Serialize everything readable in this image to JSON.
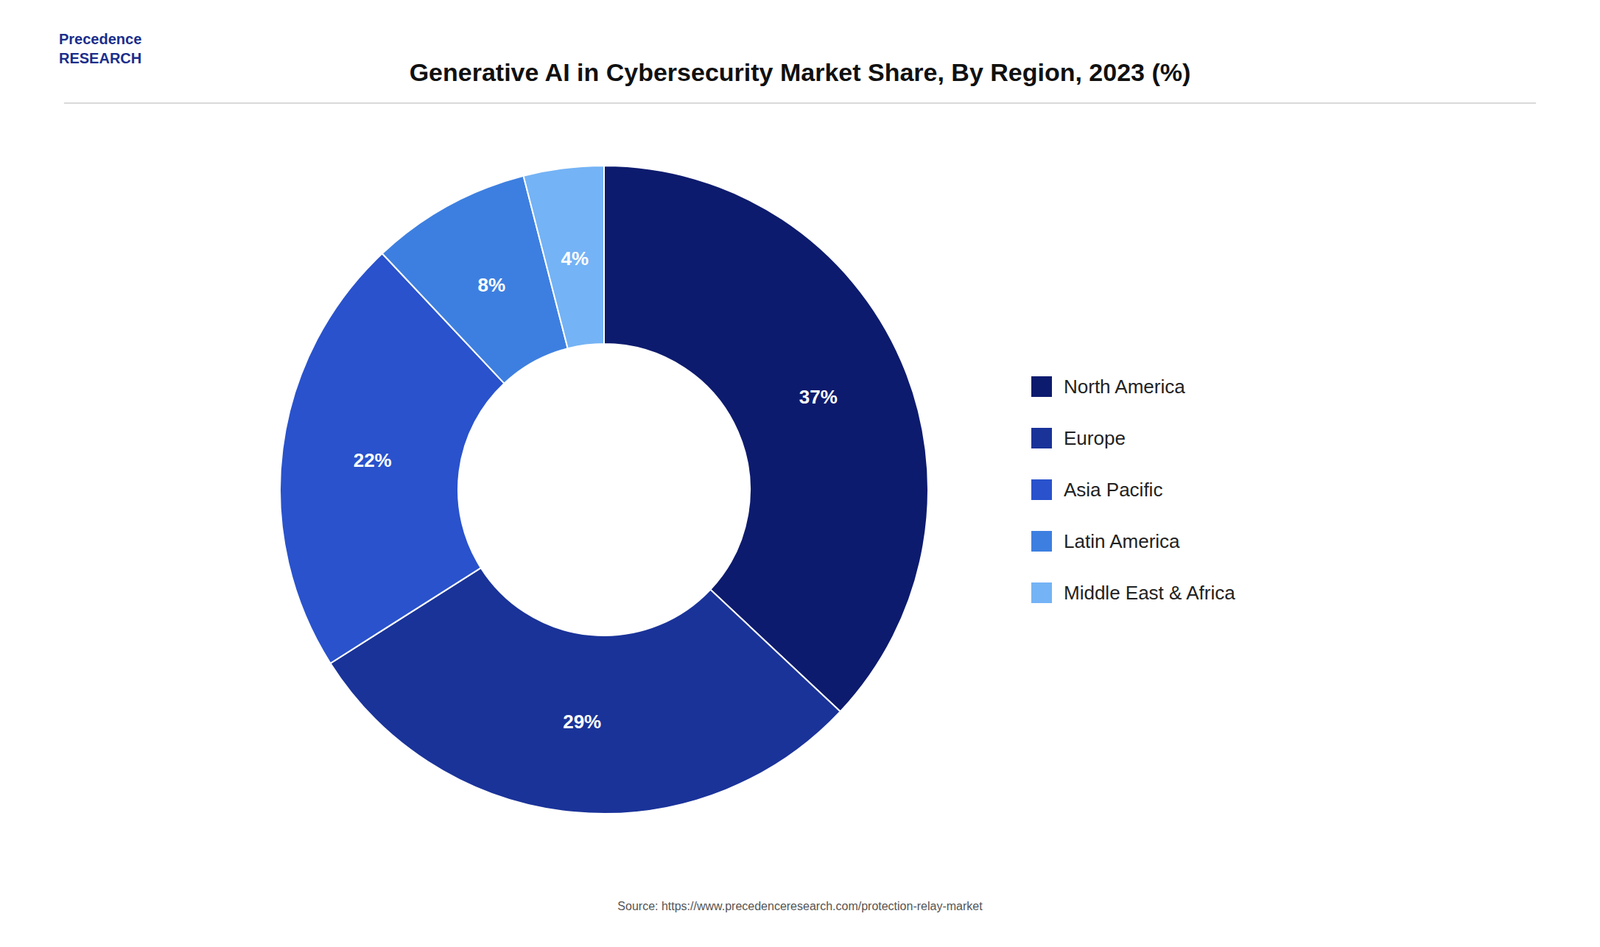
{
  "chart_data": {
    "type": "donut",
    "title": "Generative AI in Cybersecurity Market Share, By Region, 2023 (%)",
    "categories": [
      "North America",
      "Europe",
      "Asia Pacific",
      "Latin America",
      "Middle East & Africa"
    ],
    "values": [
      37,
      29,
      22,
      8,
      4
    ],
    "value_labels": [
      "37%",
      "29%",
      "22%",
      "8%",
      "4%"
    ],
    "colors": [
      "#0d1b6e",
      "#1a3399",
      "#2952cc",
      "#3d7fe0",
      "#74b3f5"
    ],
    "data_labels": true,
    "legend": "right",
    "annotations": [
      "Precedence\nRESEARCH",
      "Source: https://www.precedenceresearch.com/protection-relay-market"
    ]
  }
}
